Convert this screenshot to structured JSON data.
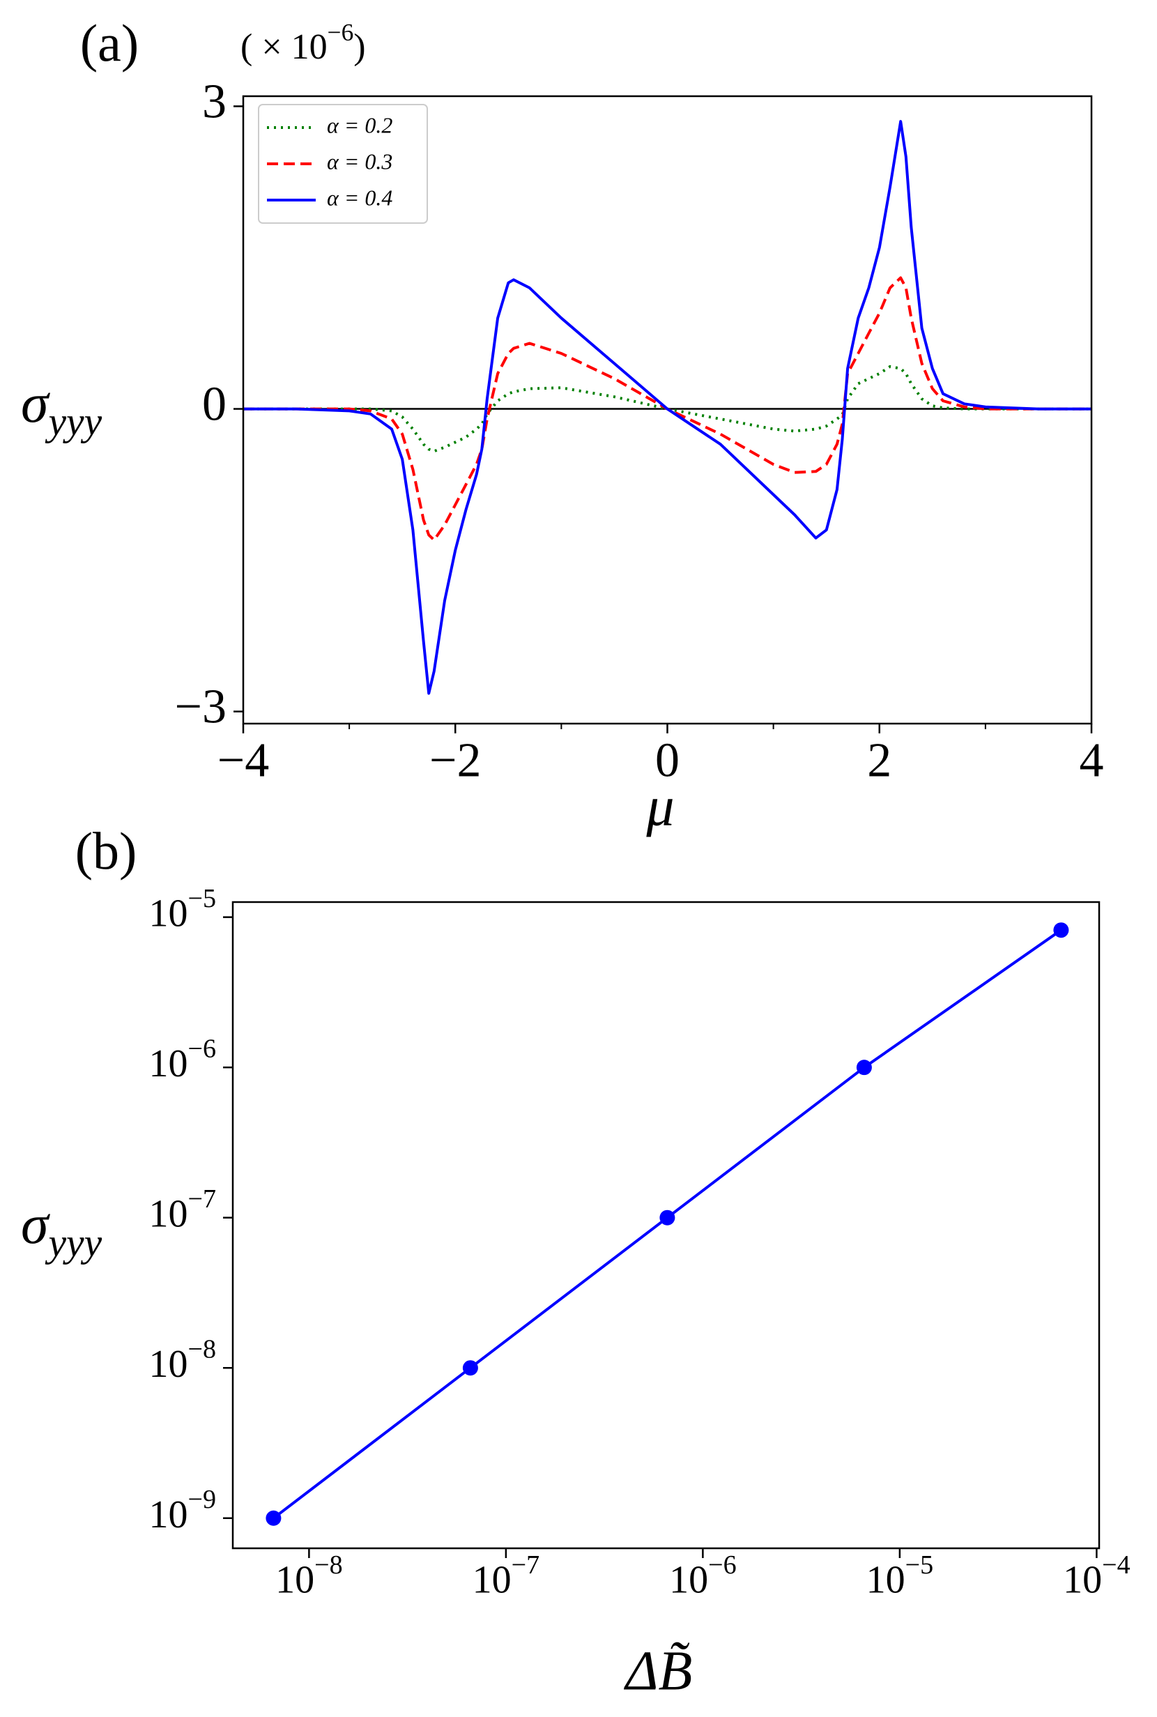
{
  "chart_data": [
    {
      "type": "line",
      "panel_label": "(a)",
      "annotation": "( × 10−6)",
      "xlabel": "μ",
      "ylabel": "σyyy",
      "xlim": [
        -4,
        4
      ],
      "ylim": [
        -3.12,
        3.1
      ],
      "xticks": [
        {
          "value": -4,
          "label": "−4"
        },
        {
          "value": -2,
          "label": "−2"
        },
        0,
        2,
        4
      ],
      "xminorticks": [
        -3,
        -1,
        1,
        3
      ],
      "yticks": [
        {
          "value": -3,
          "label": "−3"
        },
        0,
        3
      ],
      "hline": 0,
      "legend": "upper left",
      "x": [
        -4,
        -3.5,
        -3,
        -2.8,
        -2.6,
        -2.5,
        -2.4,
        -2.3,
        -2.25,
        -2.2,
        -2.1,
        -2.0,
        -1.9,
        -1.8,
        -1.75,
        -1.7,
        -1.6,
        -1.5,
        -1.45,
        -1.3,
        -1.0,
        -0.5,
        0,
        0.5,
        1.0,
        1.2,
        1.4,
        1.5,
        1.6,
        1.65,
        1.7,
        1.8,
        1.9,
        2.0,
        2.1,
        2.2,
        2.25,
        2.3,
        2.4,
        2.5,
        2.6,
        2.8,
        3,
        3.5,
        4
      ],
      "series": [
        {
          "name": "α = 0.2",
          "color": "#008000",
          "linestyle": "dotted",
          "values": [
            0,
            0,
            0,
            0,
            -0.02,
            -0.08,
            -0.2,
            -0.35,
            -0.4,
            -0.42,
            -0.38,
            -0.33,
            -0.28,
            -0.2,
            -0.15,
            -0.05,
            0.08,
            0.15,
            0.17,
            0.2,
            0.21,
            0.12,
            0,
            -0.1,
            -0.2,
            -0.22,
            -0.2,
            -0.17,
            -0.1,
            -0.06,
            0.1,
            0.25,
            0.3,
            0.35,
            0.42,
            0.4,
            0.35,
            0.25,
            0.1,
            0.03,
            0.01,
            0,
            0,
            0,
            0
          ]
        },
        {
          "name": "α = 0.3",
          "color": "#ff0000",
          "linestyle": "dashed",
          "values": [
            0,
            0,
            0,
            -0.02,
            -0.1,
            -0.25,
            -0.6,
            -1.1,
            -1.25,
            -1.3,
            -1.15,
            -0.95,
            -0.75,
            -0.55,
            -0.4,
            -0.1,
            0.35,
            0.55,
            0.6,
            0.65,
            0.55,
            0.3,
            0,
            -0.25,
            -0.55,
            -0.63,
            -0.62,
            -0.55,
            -0.35,
            -0.15,
            0.35,
            0.55,
            0.75,
            0.95,
            1.2,
            1.3,
            1.2,
            0.9,
            0.45,
            0.2,
            0.08,
            0.02,
            0,
            0,
            0
          ]
        },
        {
          "name": "α = 0.4",
          "color": "#0000ff",
          "linestyle": "solid",
          "values": [
            0,
            0,
            -0.02,
            -0.05,
            -0.2,
            -0.5,
            -1.2,
            -2.3,
            -2.82,
            -2.6,
            -1.9,
            -1.4,
            -1.0,
            -0.65,
            -0.4,
            0.1,
            0.9,
            1.25,
            1.28,
            1.2,
            0.9,
            0.45,
            0,
            -0.35,
            -0.85,
            -1.05,
            -1.28,
            -1.2,
            -0.8,
            -0.3,
            0.4,
            0.9,
            1.2,
            1.6,
            2.2,
            2.85,
            2.5,
            1.8,
            0.8,
            0.4,
            0.15,
            0.05,
            0.02,
            0,
            0
          ]
        }
      ]
    },
    {
      "type": "line",
      "panel_label": "(b)",
      "xlabel": "ΔB̃",
      "ylabel": "σyyy",
      "xscale": "log",
      "yscale": "log",
      "markers": true,
      "color": "#0000ff",
      "xlim": [
        4.1e-09,
        0.000103
      ],
      "ylim": [
        6.3e-10,
        1.26e-05
      ],
      "xticks": [
        {
          "value": 1e-08,
          "label": "10−8"
        },
        {
          "value": 1e-07,
          "label": "10−7"
        },
        {
          "value": 1e-06,
          "label": "10−6"
        },
        {
          "value": 1e-05,
          "label": "10−5"
        },
        {
          "value": 0.0001,
          "label": "10−4"
        }
      ],
      "yticks": [
        {
          "value": 1e-09,
          "label": "10−9"
        },
        {
          "value": 1e-08,
          "label": "10−8"
        },
        {
          "value": 1e-07,
          "label": "10−7"
        },
        {
          "value": 1e-06,
          "label": "10−6"
        },
        {
          "value": 1e-05,
          "label": "10−5"
        }
      ],
      "x": [
        6.6e-09,
        6.6e-08,
        6.6e-07,
        6.6e-06,
        6.6e-05
      ],
      "values": [
        1e-09,
        1e-08,
        1e-07,
        1e-06,
        8.2e-06
      ]
    }
  ]
}
